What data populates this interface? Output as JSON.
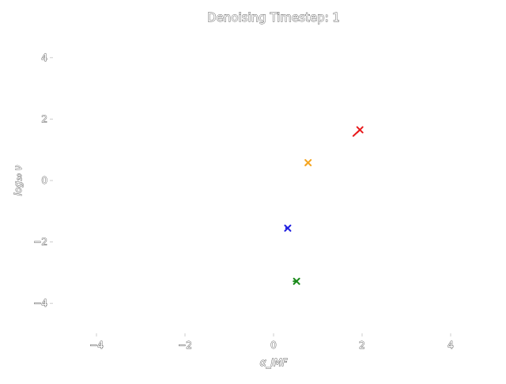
{
  "chart_data": {
    "type": "scatter",
    "title": "Denoising Timestep: 1",
    "xlabel": "α_IMF",
    "ylabel": "log₁₀ ν",
    "xlim": [
      -5,
      5
    ],
    "ylim": [
      -5,
      5
    ],
    "xticks": [
      -4,
      -2,
      0,
      2,
      4
    ],
    "yticks": [
      -4,
      -2,
      0,
      2,
      4
    ],
    "xtick_labels": [
      "−4",
      "−2",
      "0",
      "2",
      "4"
    ],
    "ytick_labels": [
      "−4",
      "−2",
      "0",
      "2",
      "4"
    ],
    "grid": false,
    "marker": "x",
    "points": [
      {
        "x": 1.95,
        "y": 1.65,
        "color": "#e8191b",
        "arrow_from": [
          1.8,
          1.45
        ]
      },
      {
        "x": 0.78,
        "y": 0.58,
        "color": "#f5a623",
        "arrow_from": [
          0.72,
          0.5
        ]
      },
      {
        "x": 0.32,
        "y": -1.55,
        "color": "#1f1fe0",
        "arrow_from": [
          0.28,
          -1.55
        ]
      },
      {
        "x": 0.52,
        "y": -3.28,
        "color": "#1a8a1a",
        "arrow_from": [
          0.45,
          -3.28
        ]
      }
    ]
  }
}
